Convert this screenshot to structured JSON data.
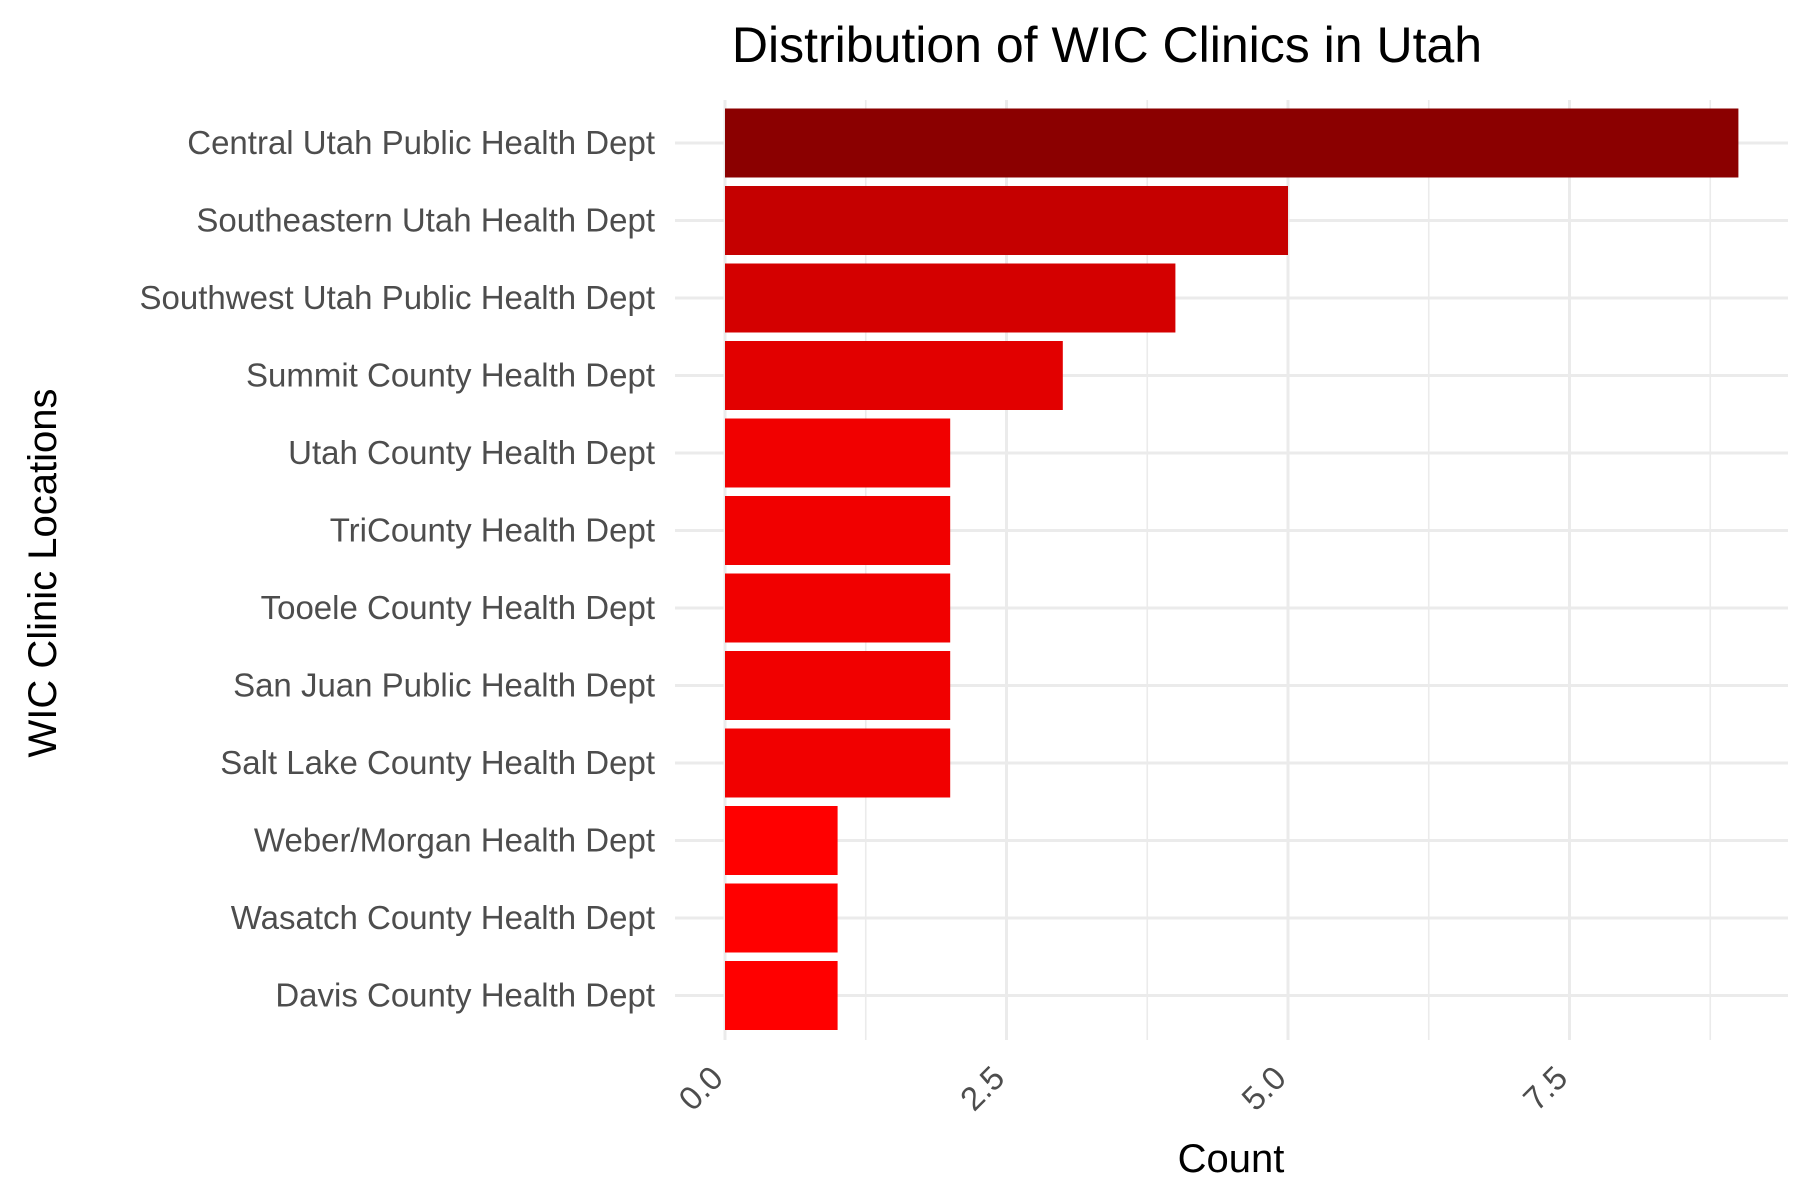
{
  "chart_data": {
    "type": "bar",
    "orientation": "horizontal",
    "title": "Distribution of WIC Clinics in Utah",
    "xlabel": "Count",
    "ylabel": "WIC Clinic Locations",
    "xlim": [
      0,
      9
    ],
    "x_ticks": [
      "0.0",
      "2.5",
      "5.0",
      "7.5"
    ],
    "x_tick_values": [
      0,
      2.5,
      5,
      7.5
    ],
    "grid": true,
    "legend": "none",
    "categories": [
      "Central Utah Public Health Dept",
      "Southeastern Utah Health Dept",
      "Southwest Utah Public Health Dept",
      "Summit County Health Dept",
      "Utah County Health Dept",
      "TriCounty Health Dept",
      "Tooele County Health Dept",
      "San Juan Public Health Dept",
      "Salt Lake County Health Dept",
      "Weber/Morgan Health Dept",
      "Wasatch County Health Dept",
      "Davis County Health Dept"
    ],
    "values": [
      9,
      5,
      4,
      3,
      2,
      2,
      2,
      2,
      2,
      1,
      1,
      1
    ],
    "colors": {
      "high": "#8b0000",
      "low": "#ff0000"
    }
  }
}
